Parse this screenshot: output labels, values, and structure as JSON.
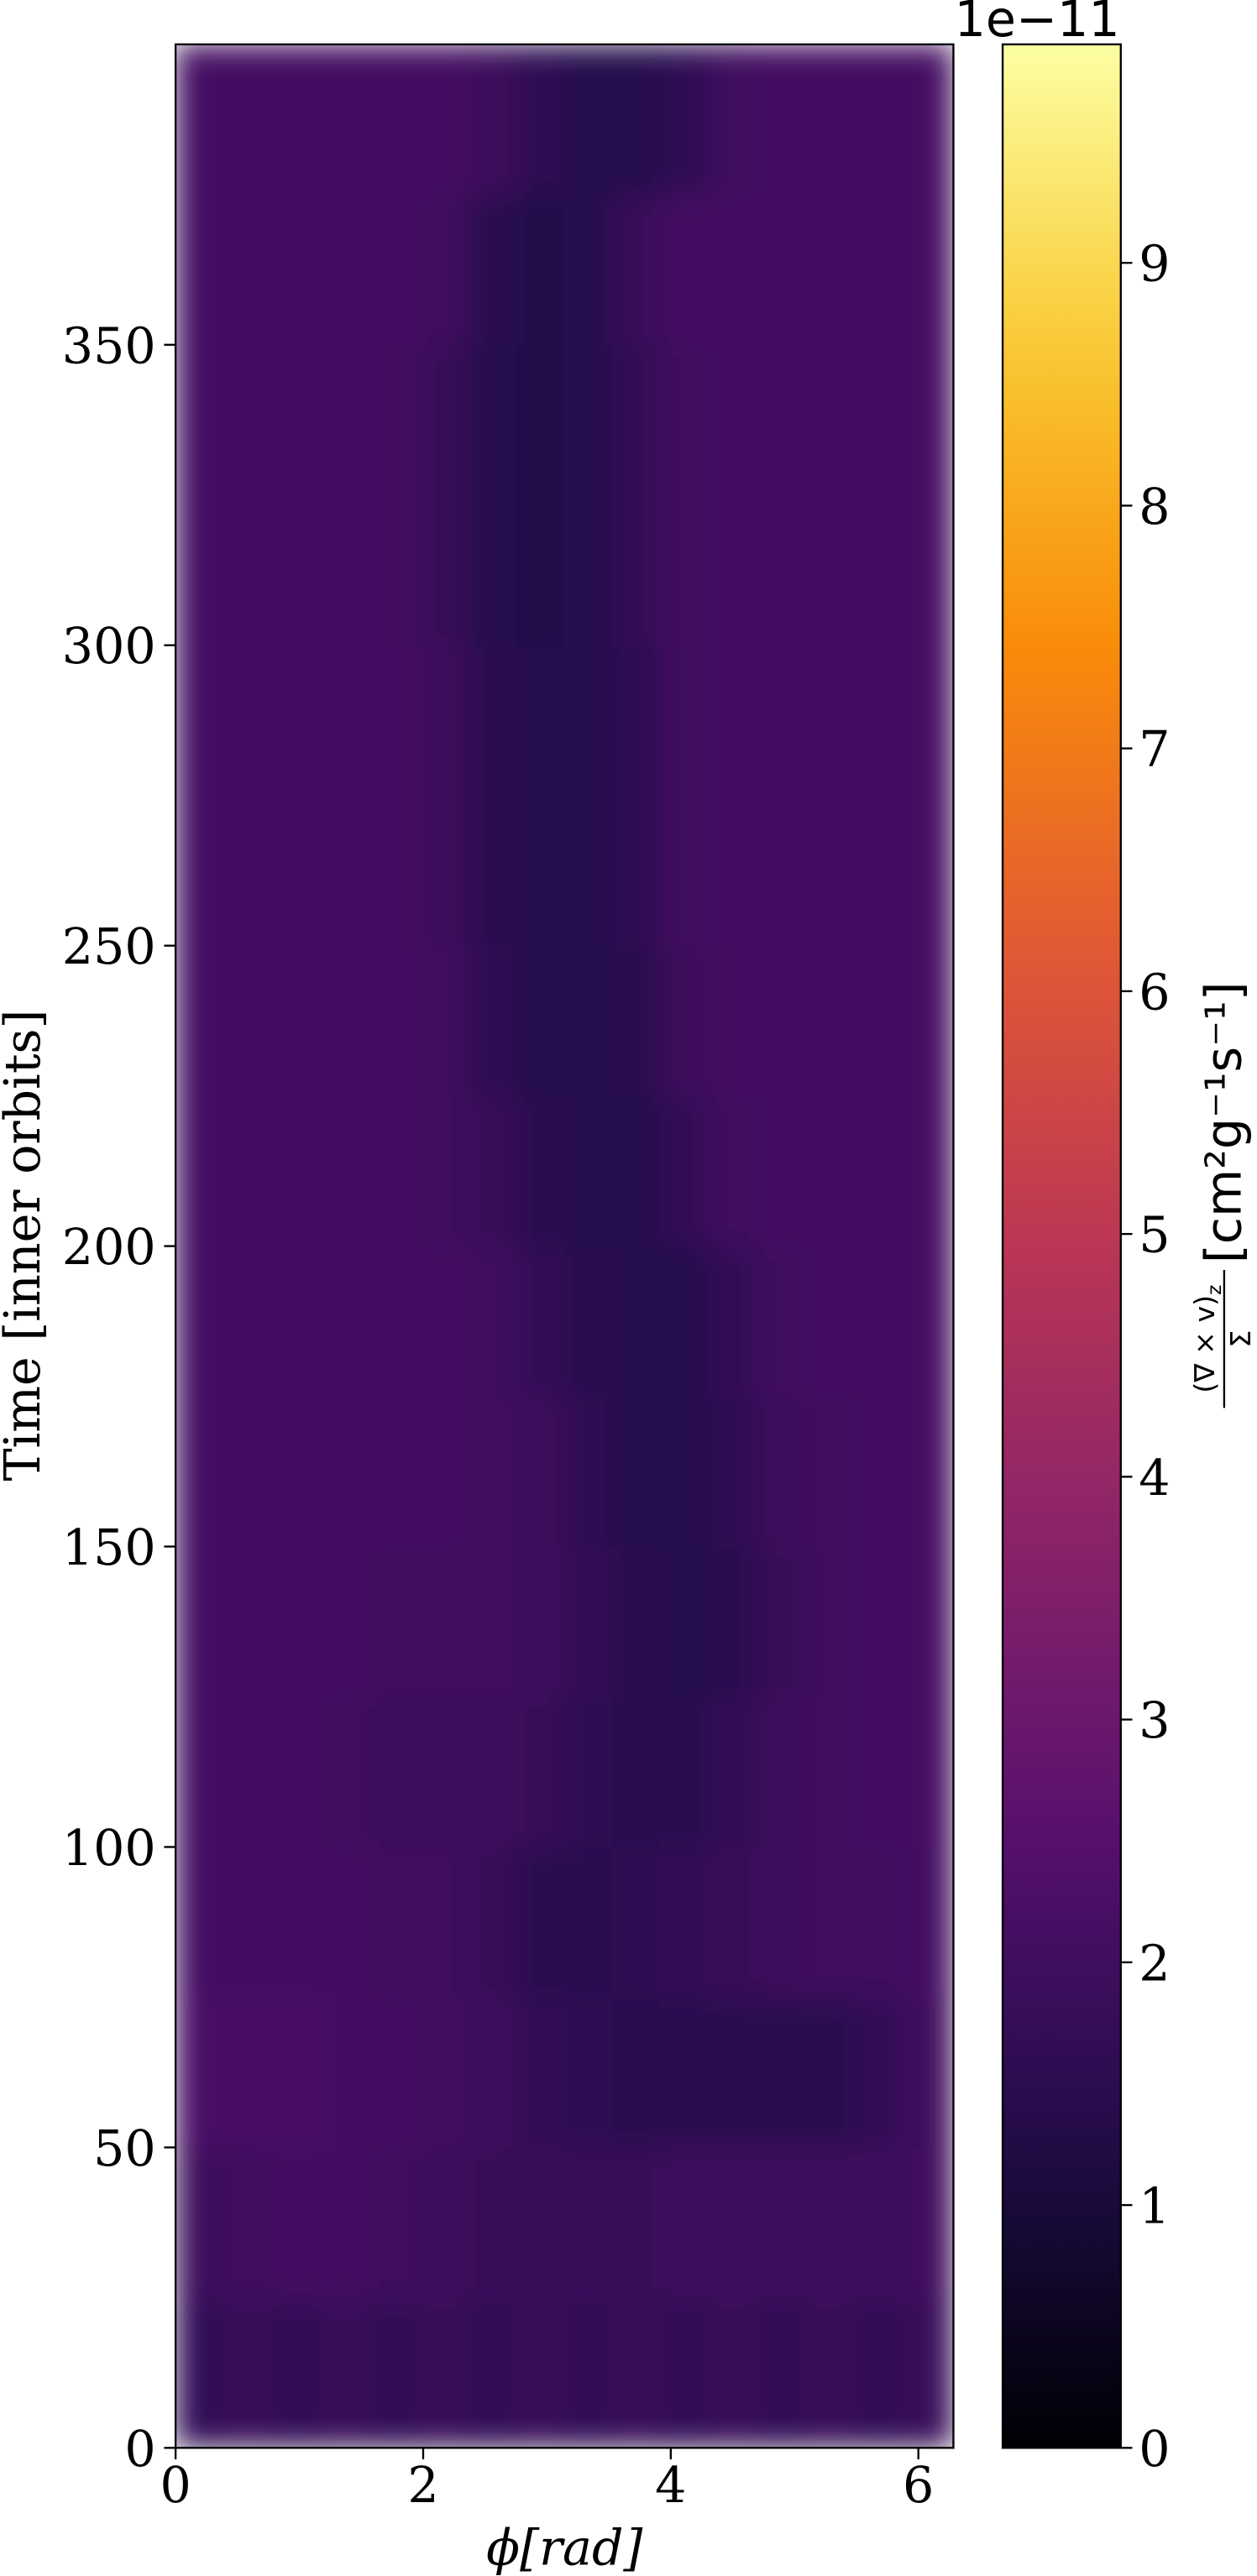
{
  "chart_data": {
    "type": "heatmap",
    "xlabel": "ϕ[rad]",
    "ylabel": "Time [inner orbits]",
    "xlim": [
      0,
      6.2832
    ],
    "ylim": [
      0,
      400
    ],
    "xticks": [
      0,
      2,
      4,
      6
    ],
    "yticks": [
      0,
      50,
      100,
      150,
      200,
      250,
      300,
      350
    ],
    "xbins": [
      0,
      0.3927,
      0.7854,
      1.1781,
      1.5708,
      1.9635,
      2.3562,
      2.7489,
      3.1416,
      3.5343,
      3.927,
      4.3197,
      4.7124,
      5.1051,
      5.4978,
      5.8905,
      6.2832
    ],
    "ybins": [
      0,
      25,
      50,
      75,
      100,
      125,
      150,
      175,
      200,
      225,
      250,
      275,
      300,
      325,
      350,
      375,
      400
    ],
    "values": [
      [
        1.7,
        1.8,
        1.7,
        1.8,
        1.7,
        1.8,
        1.7,
        1.8,
        1.7,
        1.8,
        1.7,
        1.8,
        1.7,
        1.8,
        1.7,
        1.8
      ],
      [
        1.9,
        2.0,
        2.1,
        2.1,
        2.0,
        1.9,
        1.8,
        1.8,
        1.8,
        1.8,
        1.9,
        1.9,
        1.9,
        1.9,
        1.9,
        2.0
      ],
      [
        2.2,
        2.2,
        2.2,
        2.1,
        2.1,
        2.0,
        1.9,
        1.7,
        1.6,
        1.5,
        1.5,
        1.5,
        1.5,
        1.5,
        1.7,
        2.0
      ],
      [
        2.1,
        2.1,
        2.1,
        2.1,
        2.0,
        2.0,
        1.8,
        1.5,
        1.5,
        1.6,
        1.7,
        1.8,
        1.9,
        2.0,
        2.0,
        2.1
      ],
      [
        2.1,
        2.1,
        2.1,
        2.0,
        1.9,
        1.9,
        1.9,
        1.8,
        1.6,
        1.5,
        1.5,
        1.7,
        1.9,
        2.0,
        2.1,
        2.1
      ],
      [
        2.1,
        2.1,
        2.1,
        2.1,
        2.0,
        2.0,
        2.0,
        1.9,
        1.7,
        1.5,
        1.4,
        1.5,
        1.8,
        2.0,
        2.1,
        2.1
      ],
      [
        2.1,
        2.1,
        2.1,
        2.1,
        2.1,
        2.1,
        2.0,
        1.9,
        1.6,
        1.4,
        1.4,
        1.6,
        1.9,
        2.0,
        2.1,
        2.1
      ],
      [
        2.1,
        2.1,
        2.1,
        2.1,
        2.1,
        2.1,
        2.0,
        1.7,
        1.5,
        1.4,
        1.4,
        1.7,
        2.0,
        2.1,
        2.1,
        2.1
      ],
      [
        2.1,
        2.1,
        2.1,
        2.1,
        2.1,
        2.0,
        1.8,
        1.5,
        1.4,
        1.4,
        1.7,
        2.0,
        2.1,
        2.1,
        2.1,
        2.1
      ],
      [
        2.1,
        2.1,
        2.1,
        2.1,
        2.1,
        2.0,
        1.6,
        1.4,
        1.4,
        1.5,
        1.9,
        2.1,
        2.1,
        2.1,
        2.1,
        2.1
      ],
      [
        2.1,
        2.1,
        2.1,
        2.1,
        2.1,
        1.9,
        1.5,
        1.4,
        1.4,
        1.6,
        2.0,
        2.1,
        2.1,
        2.1,
        2.1,
        2.1
      ],
      [
        2.1,
        2.1,
        2.1,
        2.1,
        2.1,
        1.9,
        1.5,
        1.4,
        1.4,
        1.6,
        2.0,
        2.1,
        2.1,
        2.1,
        2.1,
        2.1
      ],
      [
        2.1,
        2.1,
        2.1,
        2.1,
        2.1,
        1.8,
        1.4,
        1.3,
        1.4,
        1.7,
        2.0,
        2.1,
        2.1,
        2.1,
        2.1,
        2.1
      ],
      [
        2.1,
        2.1,
        2.1,
        2.1,
        2.1,
        1.8,
        1.4,
        1.3,
        1.4,
        1.7,
        2.0,
        2.1,
        2.1,
        2.1,
        2.1,
        2.1
      ],
      [
        2.1,
        2.1,
        2.1,
        2.1,
        2.1,
        2.0,
        1.5,
        1.3,
        1.4,
        1.8,
        2.1,
        2.1,
        2.1,
        2.1,
        2.1,
        2.1
      ],
      [
        2.1,
        2.1,
        2.1,
        2.1,
        2.1,
        2.1,
        1.9,
        1.6,
        1.4,
        1.4,
        1.6,
        2.0,
        2.1,
        2.1,
        2.1,
        2.1
      ]
    ],
    "colormap": "inferno",
    "colorbar": {
      "lim": [
        0,
        9.9
      ],
      "ticks": [
        0,
        1,
        2,
        3,
        4,
        5,
        6,
        7,
        8,
        9
      ],
      "offset": "1e−11",
      "label_numerator": "(∇ × v)",
      "label_subscript": "z",
      "label_denominator": "Σ",
      "label_unit": "[cm²g⁻¹s⁻¹]"
    }
  }
}
